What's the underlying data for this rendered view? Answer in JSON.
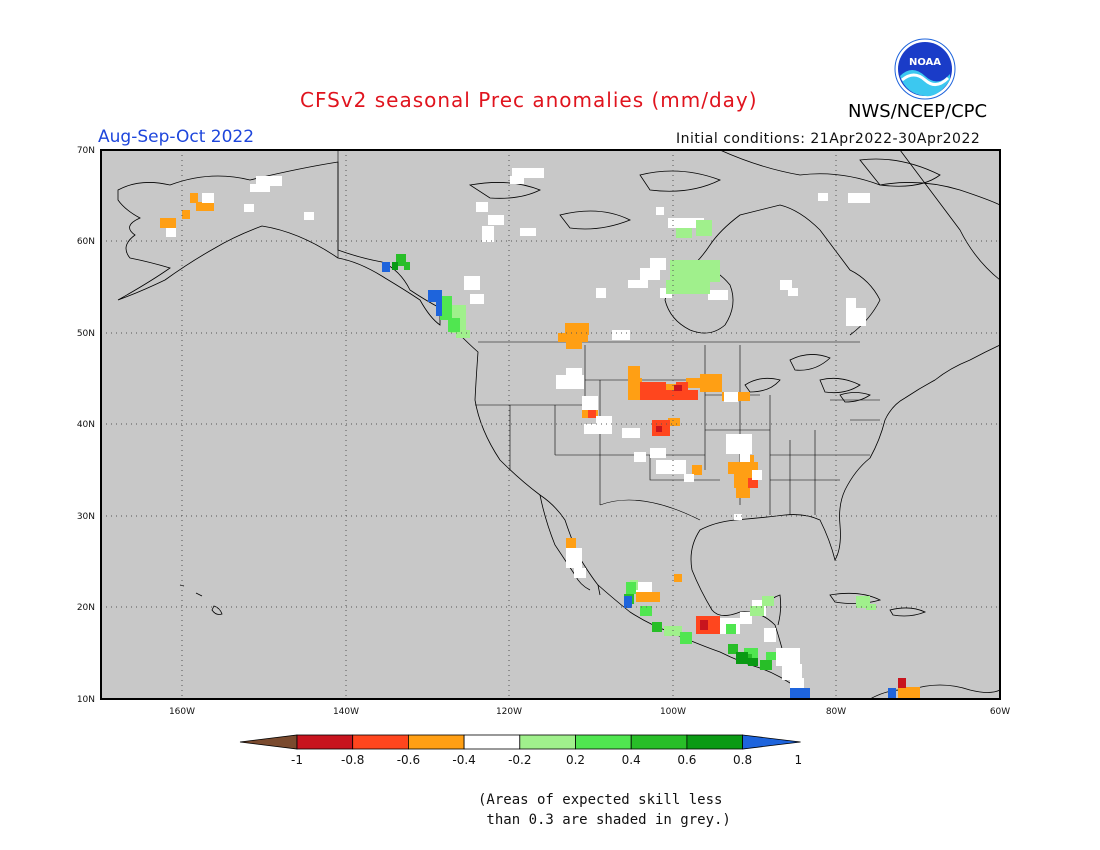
{
  "header": {
    "title": "CFSv2 seasonal Prec anomalies (mm/day)",
    "period": "Aug-Sep-Oct 2022",
    "agency": "NWS/NCEP/CPC",
    "initial_conditions": "Initial conditions: 21Apr2022-30Apr2022",
    "logo_text": "NOAA"
  },
  "map": {
    "lat_labels": [
      "70N",
      "60N",
      "50N",
      "40N",
      "30N",
      "20N",
      "10N"
    ],
    "lon_labels": [
      "160W",
      "140W",
      "120W",
      "100W",
      "80W",
      "60W"
    ],
    "background_color": "#c8c8c8"
  },
  "colorbar": {
    "labels": [
      "-1",
      "-0.8",
      "-0.6",
      "-0.4",
      "-0.2",
      "0.2",
      "0.4",
      "0.6",
      "0.8",
      "1"
    ],
    "colors": [
      "#7a4a2e",
      "#c8141e",
      "#ff461e",
      "#ff9f14",
      "#ffffff",
      "#a0f08c",
      "#50e650",
      "#28be28",
      "#0a9a14",
      "#1e64dc"
    ]
  },
  "note": {
    "line1": "(Areas of expected skill less",
    "line2": " than 0.3 are shaded in grey.)"
  }
}
